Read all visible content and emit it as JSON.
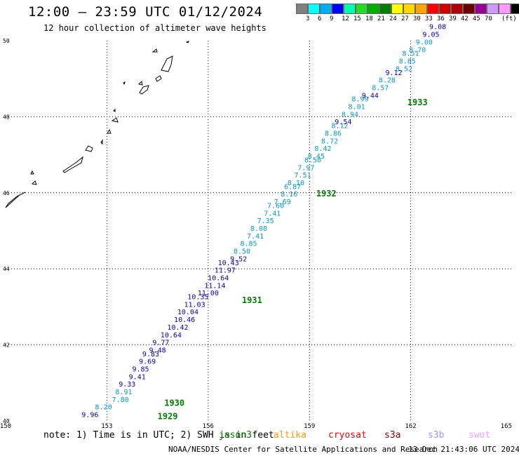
{
  "header": {
    "title": "12:00 — 23:59 UTC 01/12/2024",
    "subtitle": "12 hour collection of altimeter wave heights"
  },
  "legend": {
    "colors": [
      "#808080",
      "#00ffff",
      "#00b0f0",
      "#0000ff",
      "#00ffaa",
      "#22dd22",
      "#00b000",
      "#008000",
      "#ffff00",
      "#ffd700",
      "#ffa500",
      "#ff0000",
      "#d00000",
      "#b00000",
      "#700000",
      "#990099",
      "#cc99ff",
      "#ff99ff",
      "#000000"
    ],
    "labels": [
      "3",
      "6",
      "9",
      "12",
      "15",
      "18",
      "21",
      "24",
      "27",
      "30",
      "33",
      "36",
      "39",
      "42",
      "45",
      "70",
      "(ft)"
    ]
  },
  "map": {
    "lon_ticks": [
      "150",
      "153",
      "156",
      "159",
      "162",
      "165"
    ],
    "lat_ticks": [
      "40",
      "42",
      "44",
      "46",
      "48",
      "50"
    ],
    "pass_labels": [
      {
        "text": "1929",
        "lon": 154.5,
        "lat": 40.05
      },
      {
        "text": "1930",
        "lon": 154.7,
        "lat": 40.4
      },
      {
        "text": "1931",
        "lon": 157.0,
        "lat": 43.1
      },
      {
        "text": "1932",
        "lon": 159.2,
        "lat": 45.9
      },
      {
        "text": "1933",
        "lon": 161.9,
        "lat": 48.3
      }
    ],
    "points": [
      {
        "v": "9.96",
        "lon": 152.5,
        "lat": 40.1,
        "c": "#0000cc"
      },
      {
        "v": "8.20",
        "lon": 152.9,
        "lat": 40.3,
        "c": "#0099dd"
      },
      {
        "v": "7.80",
        "lon": 153.4,
        "lat": 40.5,
        "c": "#0099dd"
      },
      {
        "v": "8.91",
        "lon": 153.5,
        "lat": 40.7,
        "c": "#0099dd"
      },
      {
        "v": "9.33",
        "lon": 153.6,
        "lat": 40.9,
        "c": "#0000cc"
      },
      {
        "v": "9.41",
        "lon": 153.9,
        "lat": 41.1,
        "c": "#0000cc"
      },
      {
        "v": "9.85",
        "lon": 154.0,
        "lat": 41.3,
        "c": "#0000cc"
      },
      {
        "v": "9.69",
        "lon": 154.2,
        "lat": 41.5,
        "c": "#0000cc"
      },
      {
        "v": "9.83",
        "lon": 154.3,
        "lat": 41.7,
        "c": "#0000cc"
      },
      {
        "v": "9.48",
        "lon": 154.5,
        "lat": 41.8,
        "c": "#0000cc"
      },
      {
        "v": "9.77",
        "lon": 154.6,
        "lat": 42.0,
        "c": "#0000cc"
      },
      {
        "v": "10.64",
        "lon": 154.9,
        "lat": 42.2,
        "c": "#0000cc"
      },
      {
        "v": "10.42",
        "lon": 155.1,
        "lat": 42.4,
        "c": "#0000cc"
      },
      {
        "v": "10.46",
        "lon": 155.3,
        "lat": 42.6,
        "c": "#0000cc"
      },
      {
        "v": "10.04",
        "lon": 155.4,
        "lat": 42.8,
        "c": "#0000cc"
      },
      {
        "v": "11.03",
        "lon": 155.6,
        "lat": 43.0,
        "c": "#0000cc"
      },
      {
        "v": "10.35",
        "lon": 155.7,
        "lat": 43.2,
        "c": "#0000cc"
      },
      {
        "v": "11.00",
        "lon": 156.0,
        "lat": 43.3,
        "c": "#0000cc"
      },
      {
        "v": "11.14",
        "lon": 156.2,
        "lat": 43.5,
        "c": "#0000cc"
      },
      {
        "v": "10.64",
        "lon": 156.3,
        "lat": 43.7,
        "c": "#0000cc"
      },
      {
        "v": "11.97",
        "lon": 156.5,
        "lat": 43.9,
        "c": "#0000cc"
      },
      {
        "v": "10.43",
        "lon": 156.6,
        "lat": 44.1,
        "c": "#0000cc"
      },
      {
        "v": "9.52",
        "lon": 156.9,
        "lat": 44.2,
        "c": "#0000cc"
      },
      {
        "v": "8.50",
        "lon": 157.0,
        "lat": 44.4,
        "c": "#0099dd"
      },
      {
        "v": "8.85",
        "lon": 157.2,
        "lat": 44.6,
        "c": "#0099dd"
      },
      {
        "v": "7.41",
        "lon": 157.4,
        "lat": 44.8,
        "c": "#0099dd"
      },
      {
        "v": "8.08",
        "lon": 157.5,
        "lat": 45.0,
        "c": "#0099dd"
      },
      {
        "v": "7.35",
        "lon": 157.7,
        "lat": 45.2,
        "c": "#0099dd"
      },
      {
        "v": "7.41",
        "lon": 157.9,
        "lat": 45.4,
        "c": "#0099dd"
      },
      {
        "v": "7.60",
        "lon": 158.0,
        "lat": 45.6,
        "c": "#0099dd"
      },
      {
        "v": "7.69",
        "lon": 158.2,
        "lat": 45.7,
        "c": "#0099dd"
      },
      {
        "v": "8.16",
        "lon": 158.4,
        "lat": 45.9,
        "c": "#0099dd"
      },
      {
        "v": "6.87",
        "lon": 158.5,
        "lat": 46.1,
        "c": "#0099dd"
      },
      {
        "v": "8.10",
        "lon": 158.6,
        "lat": 46.2,
        "c": "#0099dd"
      },
      {
        "v": "7.51",
        "lon": 158.8,
        "lat": 46.4,
        "c": "#0099dd"
      },
      {
        "v": "7.97",
        "lon": 158.9,
        "lat": 46.6,
        "c": "#0099dd"
      },
      {
        "v": "8.50",
        "lon": 159.1,
        "lat": 46.8,
        "c": "#0099dd"
      },
      {
        "v": "8.45",
        "lon": 159.2,
        "lat": 46.9,
        "c": "#0099dd"
      },
      {
        "v": "8.42",
        "lon": 159.4,
        "lat": 47.1,
        "c": "#0099dd"
      },
      {
        "v": "8.72",
        "lon": 159.6,
        "lat": 47.3,
        "c": "#0099dd"
      },
      {
        "v": "8.86",
        "lon": 159.7,
        "lat": 47.5,
        "c": "#0099dd"
      },
      {
        "v": "8.12",
        "lon": 159.9,
        "lat": 47.7,
        "c": "#0099dd"
      },
      {
        "v": "9.54",
        "lon": 160.0,
        "lat": 47.8,
        "c": "#0000cc"
      },
      {
        "v": "8.94",
        "lon": 160.2,
        "lat": 48.0,
        "c": "#0099dd"
      },
      {
        "v": "8.01",
        "lon": 160.4,
        "lat": 48.2,
        "c": "#0099dd"
      },
      {
        "v": "8.99",
        "lon": 160.5,
        "lat": 48.4,
        "c": "#0099dd"
      },
      {
        "v": "9.44",
        "lon": 160.8,
        "lat": 48.5,
        "c": "#0000cc"
      },
      {
        "v": "8.57",
        "lon": 161.1,
        "lat": 48.7,
        "c": "#0099dd"
      },
      {
        "v": "8.28",
        "lon": 161.3,
        "lat": 48.9,
        "c": "#0099dd"
      },
      {
        "v": "9.12",
        "lon": 161.5,
        "lat": 49.1,
        "c": "#0000cc"
      },
      {
        "v": "8.52",
        "lon": 161.8,
        "lat": 49.2,
        "c": "#0099dd"
      },
      {
        "v": "8.85",
        "lon": 161.9,
        "lat": 49.4,
        "c": "#0099dd"
      },
      {
        "v": "8.51",
        "lon": 162.0,
        "lat": 49.6,
        "c": "#0099dd"
      },
      {
        "v": "8.70",
        "lon": 162.2,
        "lat": 49.7,
        "c": "#0099dd"
      },
      {
        "v": "9.00",
        "lon": 162.4,
        "lat": 49.9,
        "c": "#0099dd"
      },
      {
        "v": "9.05",
        "lon": 162.6,
        "lat": 50.1,
        "c": "#0000cc"
      },
      {
        "v": "9.08",
        "lon": 162.8,
        "lat": 50.3,
        "c": "#0000cc"
      }
    ]
  },
  "footer": {
    "note": "note:  1) Time is in UTC;  2) SWH is in feet",
    "satellites": [
      {
        "name": "jason3",
        "color": "#008000"
      },
      {
        "name": "altika",
        "color": "#ff9900"
      },
      {
        "name": "cryosat",
        "color": "#ff0000"
      },
      {
        "name": "s3a",
        "color": "#990000"
      },
      {
        "name": "s3b",
        "color": "#9999ff"
      },
      {
        "name": "swot",
        "color": "#ff99ff"
      }
    ],
    "credit": "NOAA/NESDIS Center for Satellite Applications and Research",
    "generated": "13 Dec 21:43:06 UTC 2024"
  }
}
